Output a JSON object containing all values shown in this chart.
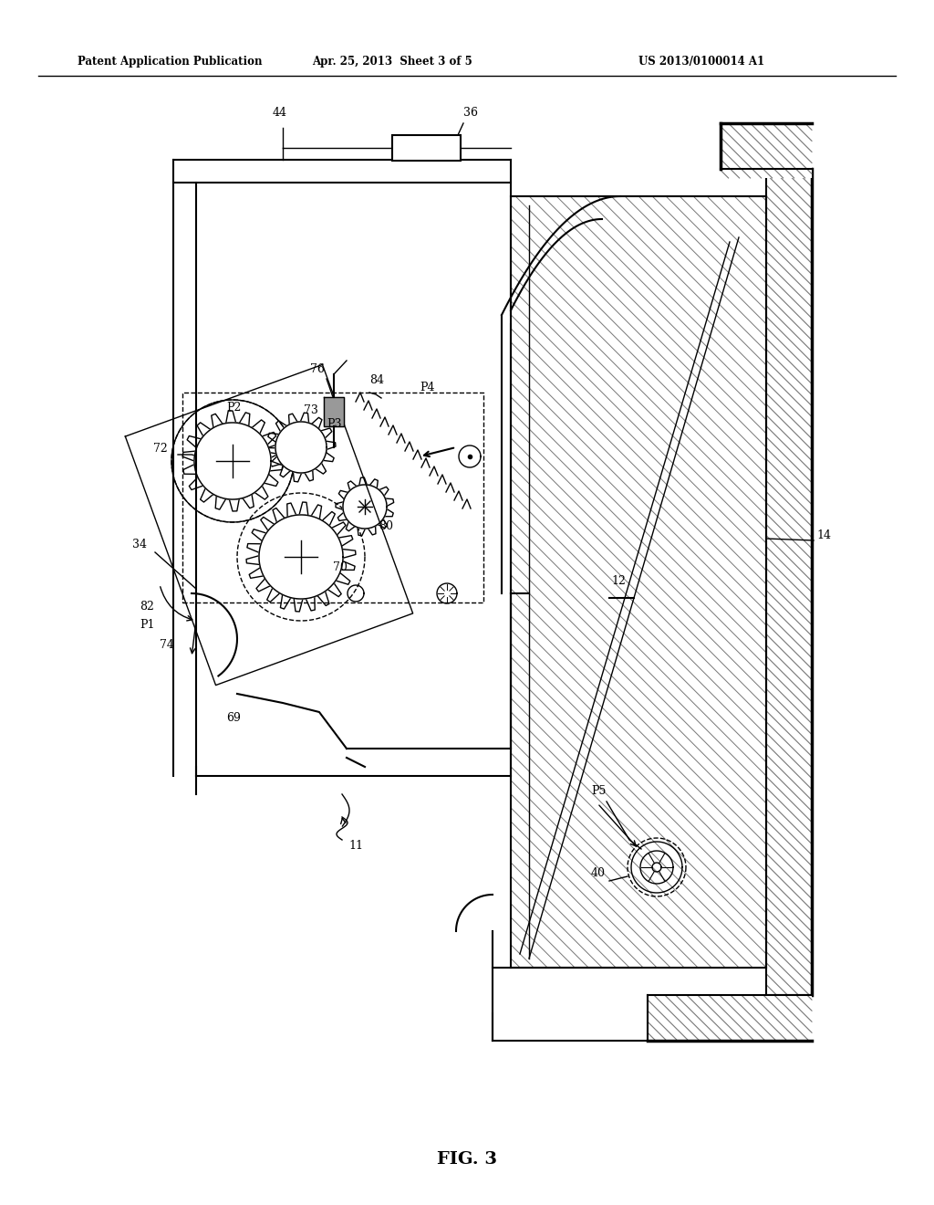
{
  "title_left": "Patent Application Publication",
  "title_center": "Apr. 25, 2013  Sheet 3 of 5",
  "title_right": "US 2013/0100014 A1",
  "fig_label": "FIG. 3",
  "bg_color": "#ffffff",
  "line_color": "#000000"
}
